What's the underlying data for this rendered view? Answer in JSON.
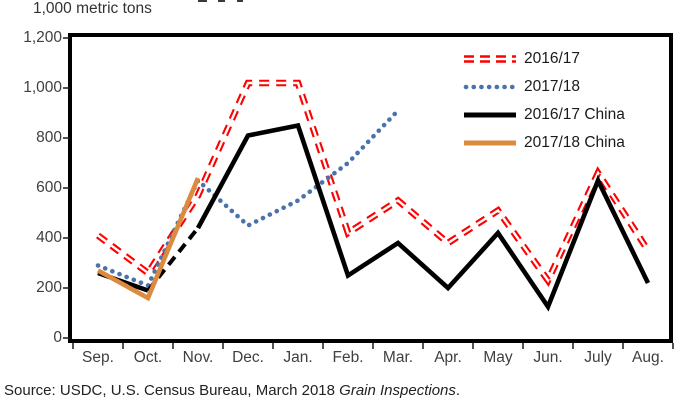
{
  "unit_label": "1,000 metric tons",
  "source": {
    "prefix": "Source: USDC, U.S. Census Bureau, March 2018 ",
    "italic": "Grain Inspections",
    "suffix": "."
  },
  "chart_data": {
    "type": "line",
    "title": "",
    "ylabel": "1,000 metric tons",
    "xlabel": "",
    "ylim": [
      0,
      1200
    ],
    "ytick_step": 200,
    "grid": false,
    "legend_position": "top-right-inside",
    "categories": [
      "Sep.",
      "Oct.",
      "Nov.",
      "Dec.",
      "Jan.",
      "Feb.",
      "Mar.",
      "Apr.",
      "May",
      "Jun.",
      "July",
      "Aug."
    ],
    "series": [
      {
        "name": "2016/17",
        "style": "double-dash",
        "color": "#fe0000",
        "values": [
          410,
          260,
          570,
          1020,
          1020,
          420,
          550,
          380,
          510,
          230,
          660,
          350
        ]
      },
      {
        "name": "2017/18",
        "style": "dotted",
        "color": "#4b73ab",
        "values": [
          290,
          210,
          630,
          450,
          550,
          700,
          910,
          null,
          null,
          null,
          null,
          null
        ]
      },
      {
        "name": "2016/17 China",
        "style": "solid",
        "color": "#000000",
        "dashed_segment": [
          1,
          2
        ],
        "values": [
          260,
          190,
          440,
          810,
          850,
          250,
          380,
          200,
          420,
          125,
          630,
          220
        ]
      },
      {
        "name": "2017/18 China",
        "style": "solid",
        "color": "#dc8a3e",
        "values": [
          270,
          160,
          640,
          null,
          null,
          null,
          null,
          null,
          null,
          null,
          null,
          null
        ]
      }
    ]
  }
}
